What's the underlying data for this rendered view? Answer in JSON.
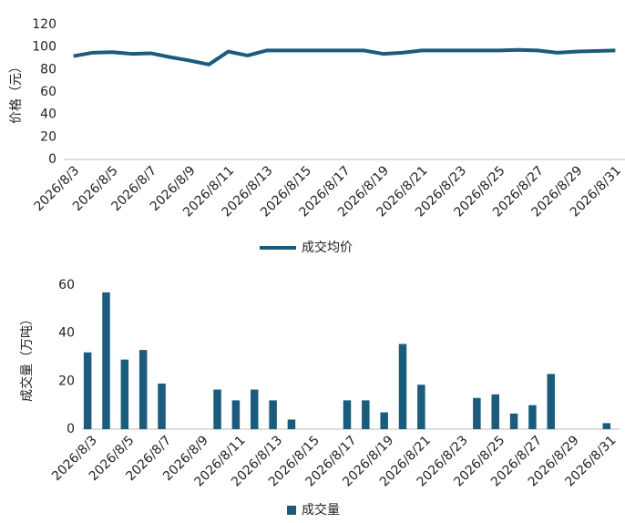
{
  "chart_data": [
    {
      "type": "line",
      "y_label": "价格（元）",
      "categories": [
        "2026/8/3",
        null,
        "2026/8/5",
        null,
        "2026/8/7",
        null,
        "2026/8/9",
        null,
        "2026/8/11",
        null,
        "2026/8/13",
        null,
        "2026/8/15",
        null,
        "2026/8/17",
        null,
        "2026/8/19",
        null,
        "2026/8/21",
        null,
        "2026/8/23",
        null,
        "2026/8/25",
        null,
        "2026/8/27",
        null,
        "2026/8/29",
        null,
        "2026/8/31"
      ],
      "series": [
        {
          "name": "成交均价",
          "color": "#1b5b7c",
          "values": [
            92,
            95,
            95.5,
            94,
            94.5,
            91,
            88,
            84.5,
            96,
            92.5,
            97,
            97,
            97,
            97,
            97,
            97,
            94,
            95,
            97,
            97,
            97,
            97,
            97,
            97.5,
            97,
            95,
            96,
            96.5,
            97
          ]
        }
      ],
      "ylim": [
        0,
        120
      ],
      "yticks": [
        0,
        20,
        40,
        60,
        80,
        100,
        120
      ]
    },
    {
      "type": "bar",
      "y_label": "成交量（万吨）",
      "categories": [
        "2026/8/3",
        null,
        "2026/8/5",
        null,
        "2026/8/7",
        null,
        "2026/8/9",
        null,
        "2026/8/11",
        null,
        "2026/8/13",
        null,
        "2026/8/15",
        null,
        "2026/8/17",
        null,
        "2026/8/19",
        null,
        "2026/8/21",
        null,
        "2026/8/23",
        null,
        "2026/8/25",
        null,
        "2026/8/27",
        null,
        "2026/8/29",
        null,
        "2026/8/31"
      ],
      "series": [
        {
          "name": "成交量",
          "color": "#1b5b7c",
          "values": [
            32,
            57,
            29,
            33,
            19,
            null,
            null,
            16.5,
            12,
            16.5,
            12,
            4,
            null,
            null,
            12,
            12,
            7,
            35.5,
            18.5,
            null,
            null,
            13,
            14.5,
            6.5,
            10,
            23,
            null,
            null,
            2.5
          ]
        }
      ],
      "ylim": [
        0,
        60
      ],
      "yticks": [
        0,
        20,
        40,
        60
      ]
    }
  ]
}
